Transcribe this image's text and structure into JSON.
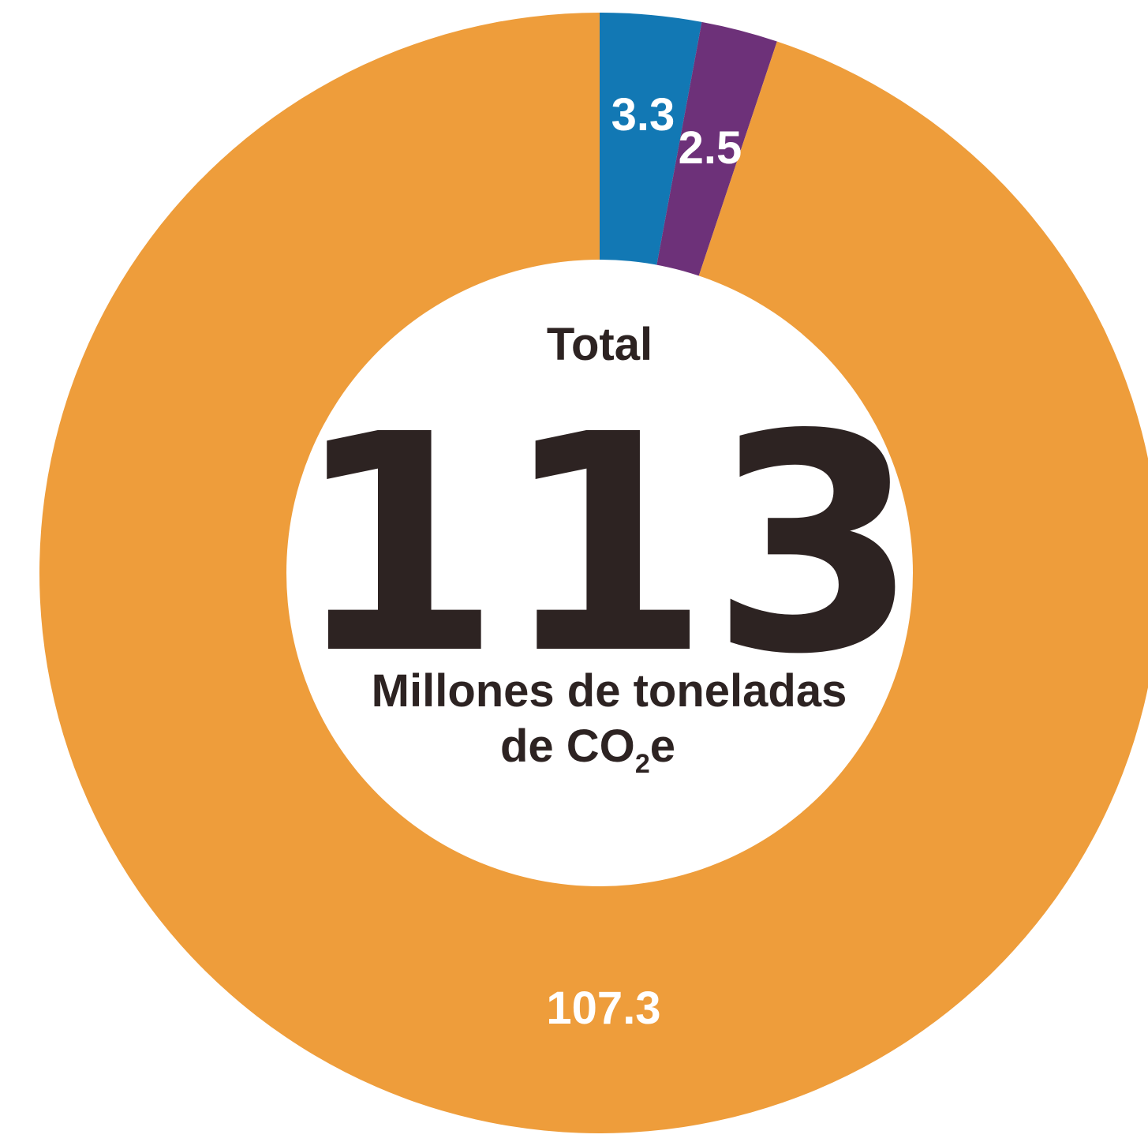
{
  "chart_data": {
    "type": "pie",
    "title": "",
    "center": {
      "label_top": "Total",
      "value": "113",
      "unit_line1": "Millones de toneladas",
      "unit_line2_prefix": "de CO",
      "unit_line2_subscript": "2",
      "unit_line2_suffix": "e"
    },
    "slices": [
      {
        "label": "3.3",
        "value": 3.3,
        "color": "#1278b4"
      },
      {
        "label": "2.5",
        "value": 2.5,
        "color": "#6d3179"
      },
      {
        "label": "107.3",
        "value": 107.3,
        "color": "#ee9d3b"
      }
    ],
    "background_color": "#ffffff",
    "text_color": "#2d2322"
  }
}
